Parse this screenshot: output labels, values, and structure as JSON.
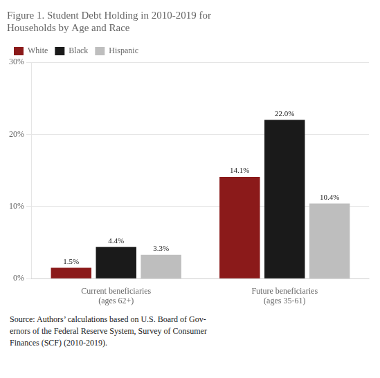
{
  "chart_data": {
    "type": "bar",
    "title": "Figure 1. Student Debt Holding in 2010-2019 for\nHouseholds by Age and Race",
    "categories": [
      "Current beneficiaries\n(ages 62+)",
      "Future beneficiaries\n(ages 35-61)"
    ],
    "series": [
      {
        "name": "White",
        "color": "#8B1A1A",
        "values": [
          1.5,
          14.1
        ],
        "value_labels": [
          "1.5%",
          "14.1%"
        ]
      },
      {
        "name": "Black",
        "color": "#1A1A1A",
        "values": [
          4.4,
          22.0
        ],
        "value_labels": [
          "4.4%",
          "22.0%"
        ]
      },
      {
        "name": "Hispanic",
        "color": "#BEBEBE",
        "values": [
          3.3,
          10.4
        ],
        "value_labels": [
          "3.3%",
          "10.4%"
        ]
      }
    ],
    "ylim": [
      0,
      30
    ],
    "yticks": [
      {
        "value": 0,
        "label": "0%"
      },
      {
        "value": 10,
        "label": "10%"
      },
      {
        "value": 20,
        "label": "20%"
      },
      {
        "value": 30,
        "label": "30%"
      }
    ],
    "grid": true,
    "legend": "upper left",
    "data_labels": true,
    "annotations": [
      "Source: Authors’ calculations based on U.S. Board of Gov-\nernors of the Federal Reserve System, Survey of Consumer\nFinances (SCF) (2010-2019)."
    ]
  }
}
